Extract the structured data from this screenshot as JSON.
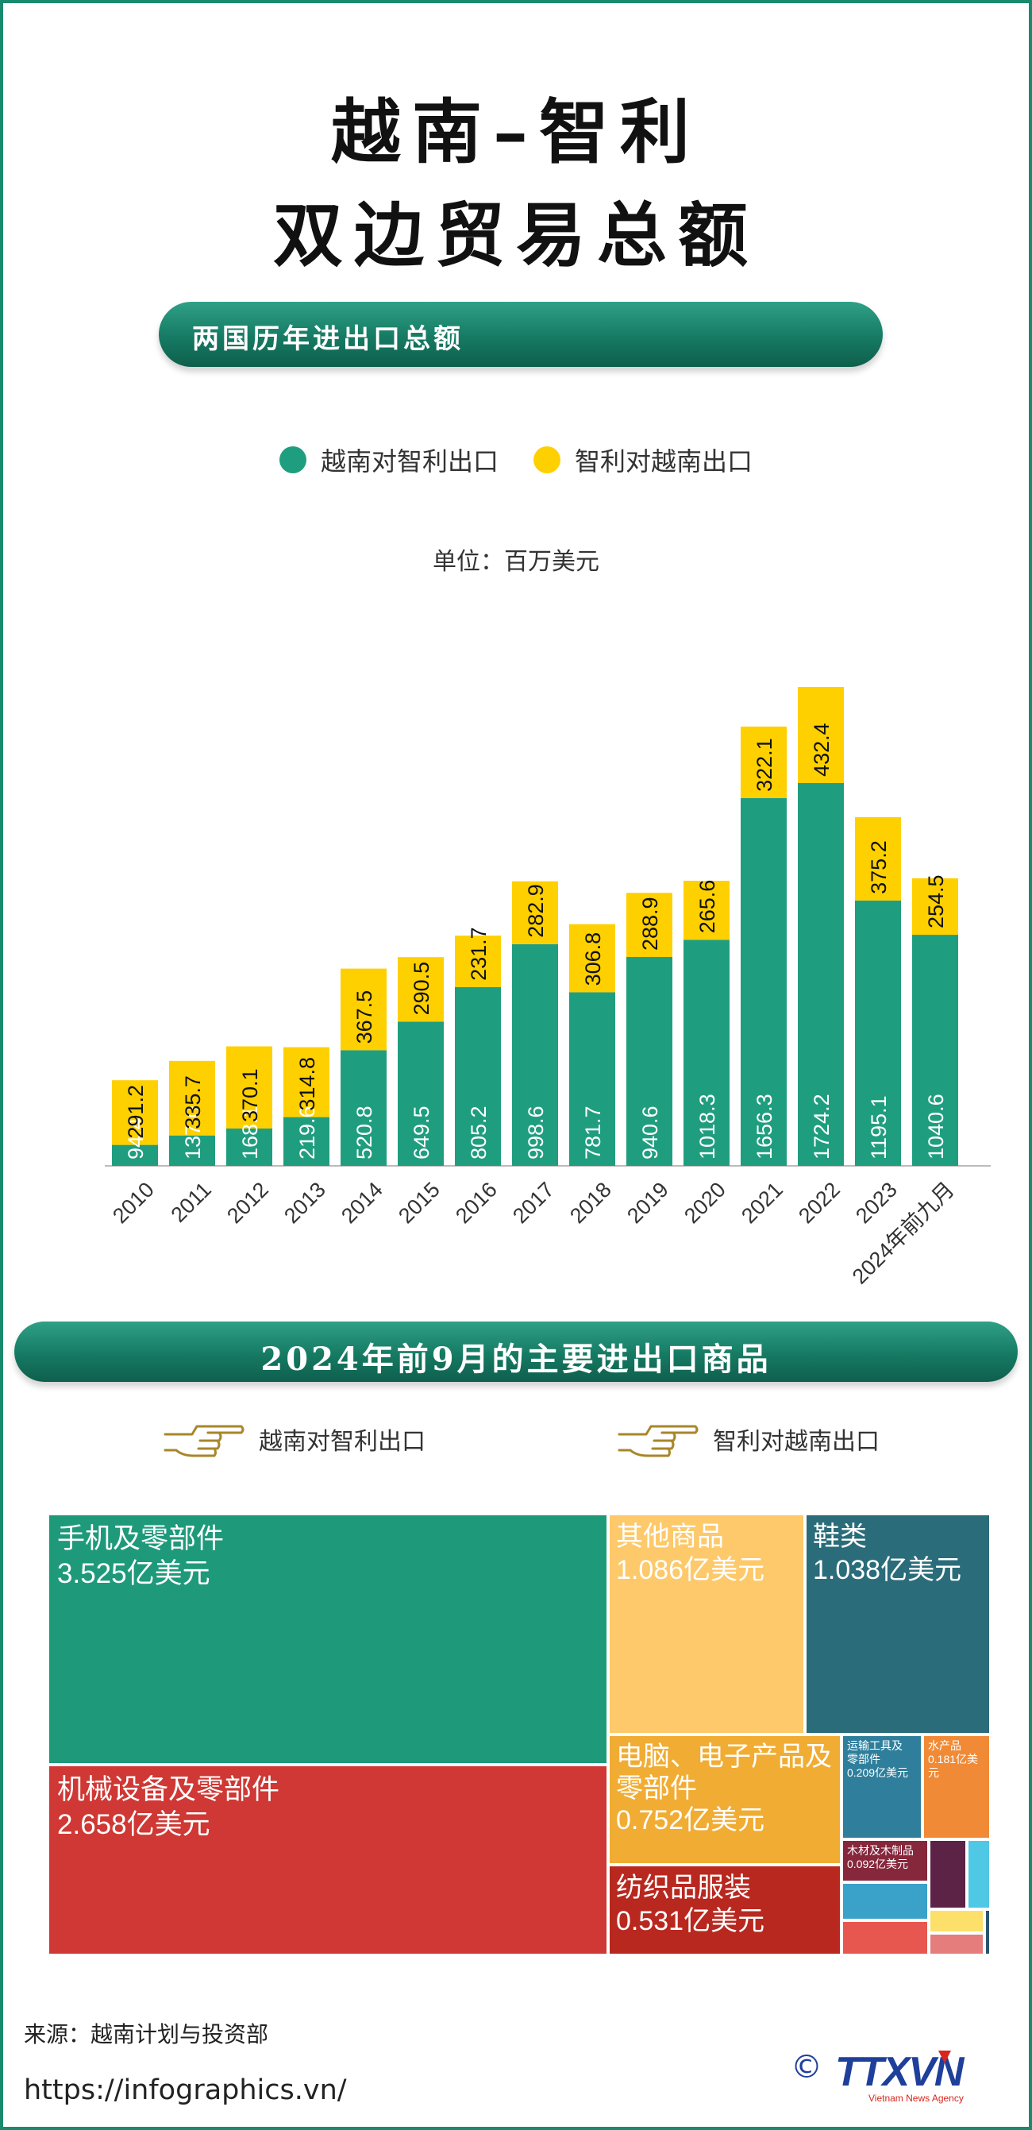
{
  "title": {
    "line1": "越南–智利",
    "line2": "双边贸易总额"
  },
  "section1": {
    "title": "两国历年进出口总额"
  },
  "legend": {
    "vn_export": {
      "label": "越南对智利出口",
      "color": "#1f9e7f"
    },
    "cl_export": {
      "label": "智利对越南出口",
      "color": "#ffd000"
    }
  },
  "unit": "单位：百万美元",
  "chart_data": {
    "type": "bar",
    "stacked": true,
    "unit": "单位：百万美元",
    "categories": [
      "2010",
      "2011",
      "2012",
      "2013",
      "2014",
      "2015",
      "2016",
      "2017",
      "2018",
      "2019",
      "2020",
      "2021",
      "2022",
      "2023",
      "2024年前九月"
    ],
    "series": [
      {
        "name": "越南对智利出口",
        "color": "#1f9e7f",
        "values": [
          94.4,
          137.0,
          168.1,
          219.6,
          520.8,
          649.5,
          805.2,
          998.6,
          781.7,
          940.6,
          1018.3,
          1656.3,
          1724.2,
          1195.1,
          1040.6
        ],
        "labels": [
          "94.4",
          "137.0",
          "168.1",
          "219.6",
          "520.8",
          "649.5",
          "805.2",
          "998.6",
          "781.7",
          "940.6",
          "1018.3",
          "1656.3",
          "1724.2",
          "1195.1",
          "1040.6"
        ]
      },
      {
        "name": "智利对越南出口",
        "color": "#ffd000",
        "values": [
          291.2,
          335.7,
          370.1,
          314.8,
          367.5,
          290.5,
          231.7,
          282.9,
          306.8,
          288.9,
          265.6,
          322.1,
          432.4,
          375.2,
          254.5
        ],
        "labels": [
          "291.2",
          "335.7",
          "370.1",
          "314.8",
          "367.5",
          "290.5",
          "231.7",
          "282.9",
          "306.8",
          "288.9",
          "265.6",
          "322.1",
          "432.4",
          "375.2",
          "254.5"
        ]
      }
    ],
    "ylim": [
      0,
      2250
    ],
    "grid": false,
    "legend_position": "top"
  },
  "section2": {
    "title": "2024年前9月的主要进出口商品"
  },
  "pointers": {
    "vn_export": "越南对智利出口",
    "cl_export": "智利对越南出口"
  },
  "treemap": [
    {
      "name": "手机及零部件",
      "value": "3.525亿美元",
      "color": "#1e9a7b"
    },
    {
      "name": "机械设备及零部件",
      "value": "2.658亿美元",
      "color": "#cf3834"
    },
    {
      "name": "其他商品",
      "value": "1.086亿美元",
      "color": "#fdc96a"
    },
    {
      "name": "鞋类",
      "value": "1.038亿美元",
      "color": "#2a6c7a"
    },
    {
      "name": "电脑、电子产品及零部件",
      "value": "0.752亿美元",
      "color": "#f1ac33"
    },
    {
      "name": "纺织品服装",
      "value": "0.531亿美元",
      "color": "#b8281f"
    },
    {
      "name": "运输工具及零部件",
      "value": "0.209亿美元",
      "color": "#2f7f9c"
    },
    {
      "name": "水产品",
      "value": "0.181亿美元",
      "color": "#f08a36"
    },
    {
      "name": "木材及木制品",
      "value": "0.092亿美元",
      "color": "#86273c"
    },
    {
      "name": "",
      "value": "",
      "color": "#5c2346"
    },
    {
      "name": "",
      "value": "",
      "color": "#4ec8e4"
    },
    {
      "name": "",
      "value": "",
      "color": "#3aa1c9"
    },
    {
      "name": "",
      "value": "",
      "color": "#e8574f"
    },
    {
      "name": "",
      "value": "",
      "color": "#fde06a"
    },
    {
      "name": "",
      "value": "",
      "color": "#e47d7b"
    },
    {
      "name": "",
      "value": "",
      "color": "#2a5470"
    }
  ],
  "footer": {
    "source": "来源：越南计划与投资部",
    "url": "https://infographics.vn/",
    "logo_text": "TTXVN",
    "logo_sub": "Vietnam News Agency",
    "logo_symbol": "©"
  },
  "colors": {
    "border": "#1a8a6e",
    "pill": "#167a63",
    "logo": "#1e3f9a"
  }
}
